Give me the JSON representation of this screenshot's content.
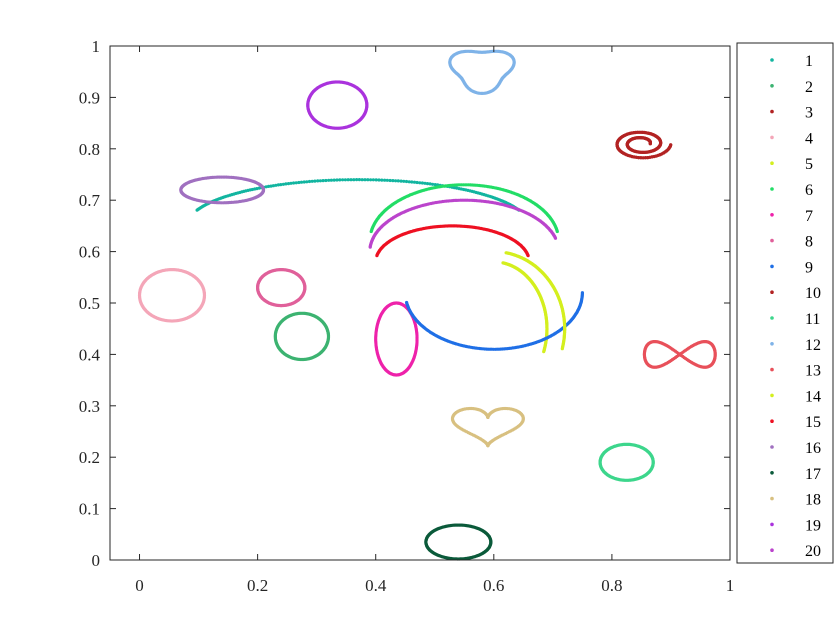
{
  "chart_data": {
    "type": "scatter",
    "title": "",
    "xlabel": "",
    "ylabel": "",
    "xlim": [
      -0.05,
      1.0
    ],
    "ylim": [
      0,
      1
    ],
    "x_ticks": [
      0,
      0.2,
      0.4,
      0.6,
      0.8,
      1
    ],
    "x_tick_labels": [
      "0",
      "0.2",
      "0.4",
      "0.6",
      "0.8",
      "1"
    ],
    "y_ticks": [
      0,
      0.1,
      0.2,
      0.3,
      0.4,
      0.5,
      0.6,
      0.7,
      0.8,
      0.9,
      1
    ],
    "y_tick_labels": [
      "0",
      "0.1",
      "0.2",
      "0.3",
      "0.4",
      "0.5",
      "0.6",
      "0.7",
      "0.8",
      "0.9",
      "1"
    ],
    "grid": false,
    "legend_position": "outside-right",
    "series": [
      {
        "name": "1",
        "color": "#12b5a0",
        "shape": "arc",
        "cx": 0.37,
        "cy": 0.65,
        "rx": 0.29,
        "ry": 0.09,
        "start": 20,
        "end": 160
      },
      {
        "name": "2",
        "color": "#3cb371",
        "shape": "ellipse",
        "cx": 0.275,
        "cy": 0.435,
        "rx": 0.045,
        "ry": 0.045
      },
      {
        "name": "3",
        "color": "#b22222",
        "shape": "spiral",
        "cx": 0.85,
        "cy": 0.81,
        "rx": 0.05,
        "ry": 0.03
      },
      {
        "name": "4",
        "color": "#f4a6b8",
        "shape": "ellipse",
        "cx": 0.055,
        "cy": 0.515,
        "rx": 0.055,
        "ry": 0.05
      },
      {
        "name": "5",
        "color": "#d4ef1f",
        "shape": "arc",
        "cx": 0.6,
        "cy": 0.45,
        "rx": 0.09,
        "ry": 0.13,
        "start": -20,
        "end": 80
      },
      {
        "name": "6",
        "color": "#22dd66",
        "shape": "arc",
        "cx": 0.55,
        "cy": 0.62,
        "rx": 0.16,
        "ry": 0.11,
        "start": 10,
        "end": 170
      },
      {
        "name": "7",
        "color": "#ee22aa",
        "shape": "ellipse",
        "cx": 0.435,
        "cy": 0.43,
        "rx": 0.035,
        "ry": 0.07
      },
      {
        "name": "8",
        "color": "#e0609a",
        "shape": "ellipse",
        "cx": 0.24,
        "cy": 0.53,
        "rx": 0.04,
        "ry": 0.035
      },
      {
        "name": "9",
        "color": "#1f6fe6",
        "shape": "arc",
        "cx": 0.6,
        "cy": 0.52,
        "rx": 0.15,
        "ry": 0.11,
        "start": 190,
        "end": 360
      },
      {
        "name": "10",
        "color": "#b22222",
        "shape": "spiral",
        "cx": 0.85,
        "cy": 0.81,
        "rx": 0.05,
        "ry": 0.03
      },
      {
        "name": "11",
        "color": "#3dd68c",
        "shape": "ellipse",
        "cx": 0.825,
        "cy": 0.19,
        "rx": 0.045,
        "ry": 0.035
      },
      {
        "name": "12",
        "color": "#7fb3e8",
        "shape": "blob",
        "cx": 0.58,
        "cy": 0.955,
        "rx": 0.05,
        "ry": 0.04
      },
      {
        "name": "13",
        "color": "#e8505a",
        "shape": "figure8",
        "cx": 0.915,
        "cy": 0.4,
        "rx": 0.06,
        "ry": 0.025
      },
      {
        "name": "14",
        "color": "#d4ef1f",
        "shape": "arc",
        "cx": 0.6,
        "cy": 0.45,
        "rx": 0.12,
        "ry": 0.15,
        "start": -15,
        "end": 80
      },
      {
        "name": "15",
        "color": "#ee1122",
        "shape": "arc",
        "cx": 0.53,
        "cy": 0.58,
        "rx": 0.13,
        "ry": 0.07,
        "start": 10,
        "end": 170
      },
      {
        "name": "16",
        "color": "#a070c0",
        "shape": "ellipse",
        "cx": 0.14,
        "cy": 0.72,
        "rx": 0.07,
        "ry": 0.025
      },
      {
        "name": "17",
        "color": "#0b5a3a",
        "shape": "ellipse",
        "cx": 0.54,
        "cy": 0.035,
        "rx": 0.055,
        "ry": 0.033
      },
      {
        "name": "18",
        "color": "#d8c080",
        "shape": "heart",
        "cx": 0.59,
        "cy": 0.265,
        "rx": 0.06,
        "ry": 0.04
      },
      {
        "name": "19",
        "color": "#aa33dd",
        "shape": "ellipse",
        "cx": 0.335,
        "cy": 0.885,
        "rx": 0.05,
        "ry": 0.045
      },
      {
        "name": "20",
        "color": "#bb44cc",
        "shape": "arc",
        "cx": 0.55,
        "cy": 0.6,
        "rx": 0.16,
        "ry": 0.1,
        "start": 15,
        "end": 175
      }
    ]
  }
}
